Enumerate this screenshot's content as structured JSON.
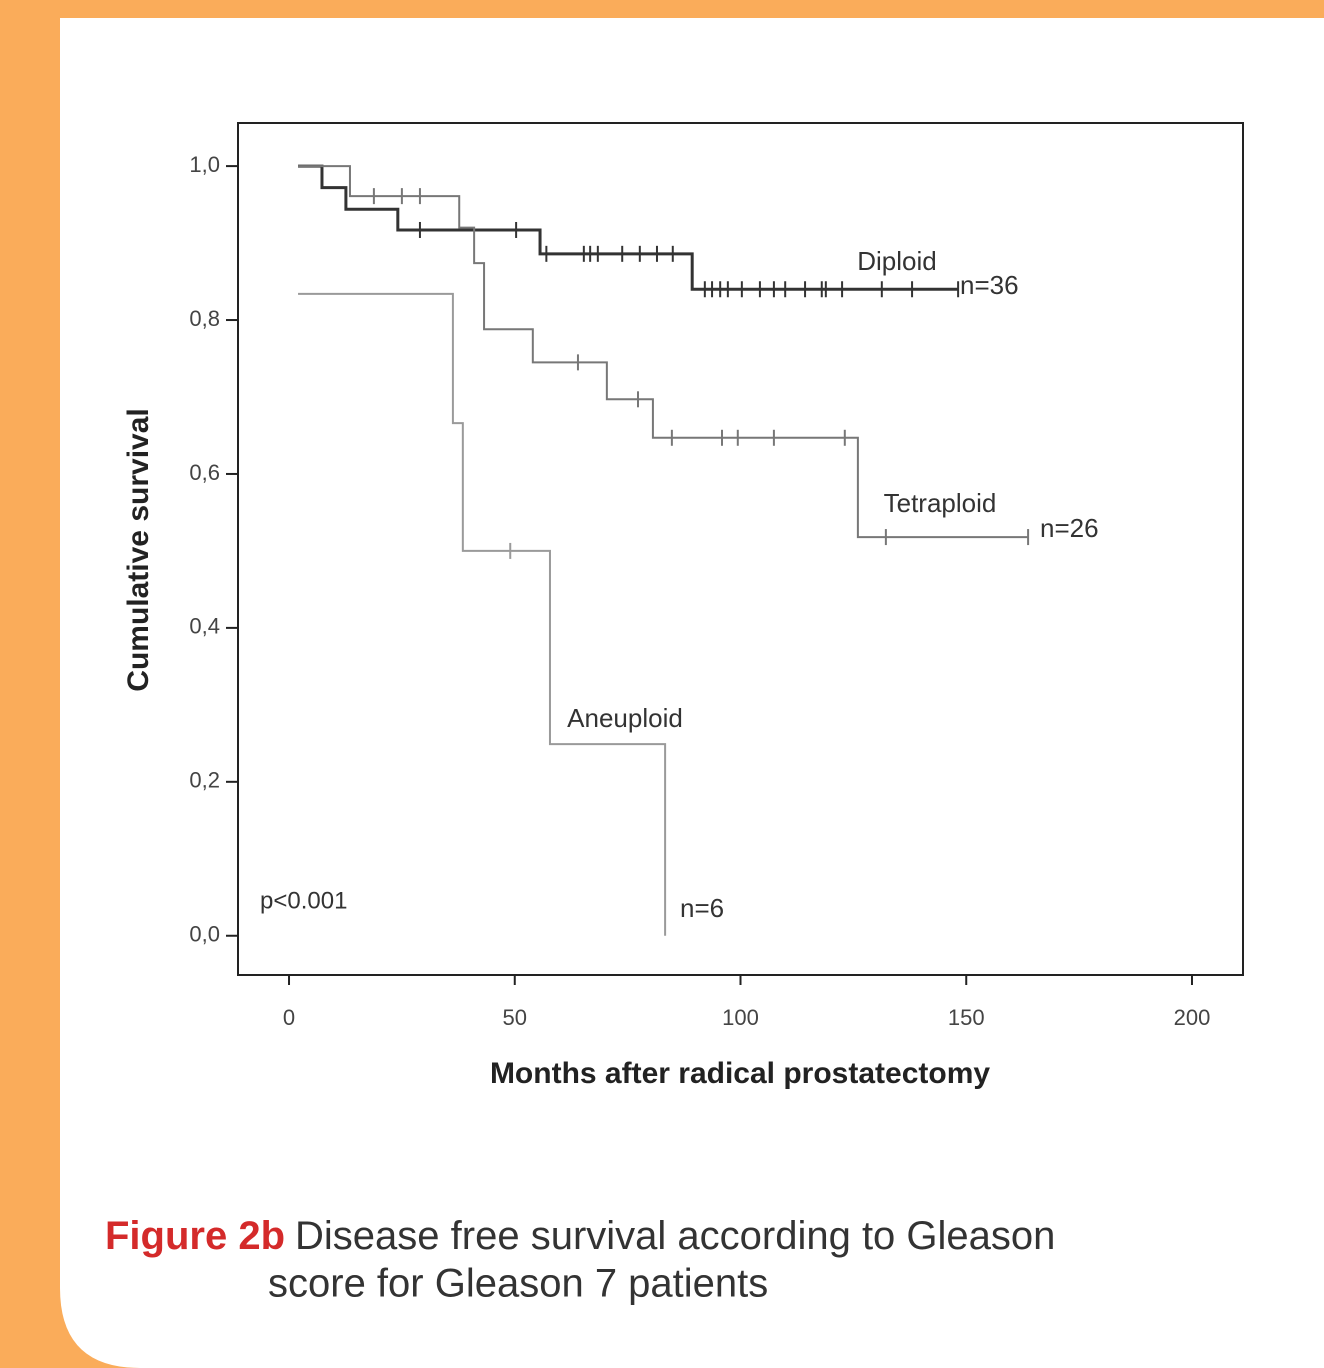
{
  "chart_data": {
    "type": "step",
    "xlabel": "Months after radical prostatectomy",
    "ylabel": "Cumulative survival",
    "annotation": "p<0.001",
    "caption_label": "Figure 2b",
    "caption_lines": [
      "Disease free survival according to Gleason",
      "score for Gleason 7 patients"
    ],
    "xlim": [
      -11.3,
      211.3
    ],
    "ylim": [
      -0.051,
      1.056
    ],
    "xticks": [
      0,
      50,
      100,
      150,
      200
    ],
    "yticks": [
      {
        "value": 0,
        "label": "0,0"
      },
      {
        "value": 0.2,
        "label": "0,2"
      },
      {
        "value": 0.4,
        "label": "0,4"
      },
      {
        "value": 0.6,
        "label": "0,6"
      },
      {
        "value": 0.8,
        "label": "0,8"
      },
      {
        "value": 1,
        "label": "1,0"
      }
    ],
    "series": [
      {
        "name": "Diploid",
        "n_label": "n=36",
        "color": "#333333",
        "x": [
          2,
          7.3,
          7.3,
          12.6,
          12.6,
          24.1,
          24.1,
          55.6,
          55.6,
          89.3,
          89.3,
          148.2
        ],
        "values": [
          1,
          1,
          0.972,
          0.972,
          0.944,
          0.944,
          0.917,
          0.917,
          0.886,
          0.886,
          0.84,
          0.84
        ],
        "censored_x": [
          29,
          50.3,
          57,
          65.3,
          66.7,
          68.4,
          73.8,
          77.7,
          81.5,
          85,
          92.1,
          93.7,
          95.5,
          97.2,
          100.3,
          104.3,
          107.4,
          109.9,
          114.3,
          118,
          118.9,
          122.5,
          131.3,
          138,
          148.2
        ],
        "censored_y": [
          0.917,
          0.917,
          0.886,
          0.886,
          0.886,
          0.886,
          0.886,
          0.886,
          0.886,
          0.886,
          0.84,
          0.84,
          0.84,
          0.84,
          0.84,
          0.84,
          0.84,
          0.84,
          0.84,
          0.84,
          0.84,
          0.84,
          0.84,
          0.84,
          0.84
        ]
      },
      {
        "name": "Tetraploid",
        "n_label": "n=26",
        "color": "#777777",
        "x": [
          2,
          13.5,
          13.5,
          37.7,
          37.7,
          41,
          41,
          43.2,
          43.2,
          54,
          54,
          70.4,
          70.4,
          80.6,
          80.6,
          126,
          126,
          163.7
        ],
        "values": [
          1,
          1,
          0.961,
          0.961,
          0.92,
          0.92,
          0.874,
          0.874,
          0.788,
          0.788,
          0.745,
          0.745,
          0.697,
          0.697,
          0.647,
          0.647,
          0.518,
          0.518
        ],
        "censored_x": [
          18.8,
          25,
          29,
          64,
          77.3,
          84.8,
          95.9,
          99.4,
          107.4,
          123.1,
          132.2,
          163.7
        ],
        "censored_y": [
          0.961,
          0.961,
          0.961,
          0.745,
          0.697,
          0.647,
          0.647,
          0.647,
          0.647,
          0.647,
          0.518,
          0.518
        ]
      },
      {
        "name": "Aneuploid",
        "n_label": "n=6",
        "color": "#9a9a9a",
        "x": [
          2,
          36.3,
          36.3,
          38.5,
          38.5,
          57.8,
          57.8,
          83.3,
          83.3
        ],
        "values": [
          0.834,
          0.834,
          0.666,
          0.666,
          0.5,
          0.5,
          0.249,
          0.249,
          0
        ],
        "censored_x": [
          49
        ],
        "censored_y": [
          0.5
        ]
      }
    ]
  }
}
